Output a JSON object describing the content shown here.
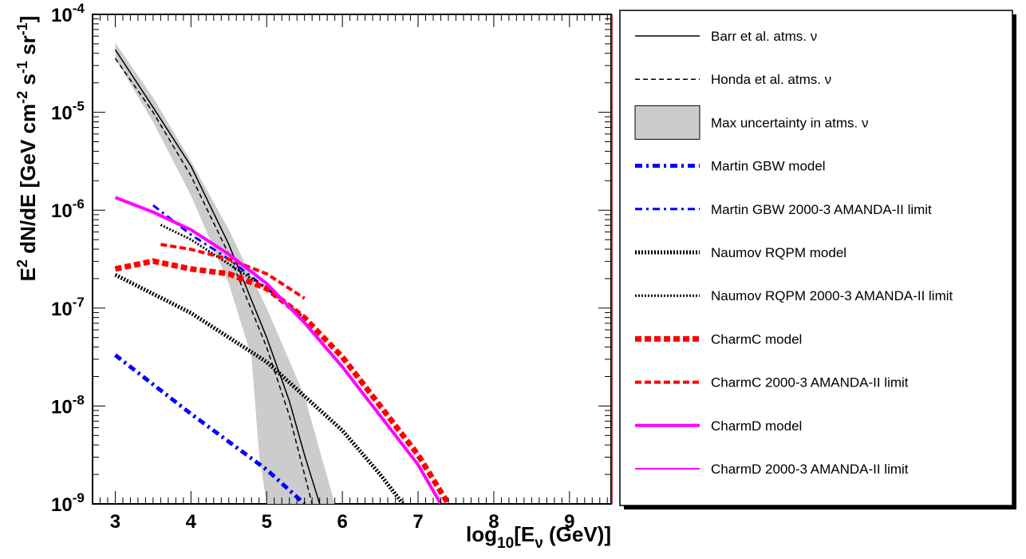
{
  "chart_data": {
    "type": "line",
    "title": "",
    "xlabel": {
      "pre": "log",
      "sub1": "10",
      "mid": "[E",
      "sub2": "ν",
      "post": " (GeV)]"
    },
    "ylabel": "E^2 dN/dE [GeV cm^-2 s^-1 sr^-1]",
    "xlim": [
      2.7,
      9.55
    ],
    "ylim_log10": [
      -9,
      -4
    ],
    "y_scale": "log",
    "x_ticks": [
      3,
      4,
      5,
      6,
      7,
      8,
      9
    ],
    "y_ticks": [
      -9,
      -8,
      -7,
      -6,
      -5,
      -4
    ],
    "y_tick_base": "10",
    "legend_position": "right",
    "uncertainty_band": {
      "name": "Max uncertainty in atms. ν",
      "color": "#cccccc",
      "upper": [
        [
          3.0,
          -4.29
        ],
        [
          3.5,
          -4.85
        ],
        [
          4.0,
          -5.5
        ],
        [
          4.5,
          -6.2
        ],
        [
          5.0,
          -7.0
        ],
        [
          5.5,
          -7.9
        ],
        [
          5.9,
          -9.0
        ]
      ],
      "lower": [
        [
          3.0,
          -4.45
        ],
        [
          3.5,
          -5.1
        ],
        [
          4.0,
          -5.85
        ],
        [
          4.5,
          -6.75
        ],
        [
          4.8,
          -7.5
        ],
        [
          4.9,
          -8.5
        ],
        [
          5.0,
          -9.0
        ]
      ]
    },
    "series": [
      {
        "name": "Barr et al. atms.  ν",
        "color": "#000000",
        "width": 1.5,
        "dash": "",
        "points": [
          [
            3.0,
            -4.36
          ],
          [
            3.5,
            -4.95
          ],
          [
            4.0,
            -5.55
          ],
          [
            4.5,
            -6.35
          ],
          [
            5.0,
            -7.3
          ],
          [
            5.3,
            -7.95
          ],
          [
            5.5,
            -8.5
          ],
          [
            5.7,
            -9.0
          ]
        ]
      },
      {
        "name": "Honda et al. atms.  ν",
        "color": "#000000",
        "width": 1.5,
        "dash": "6,4",
        "points": [
          [
            3.0,
            -4.45
          ],
          [
            3.5,
            -5.0
          ],
          [
            4.0,
            -5.65
          ],
          [
            4.5,
            -6.45
          ],
          [
            5.0,
            -7.4
          ],
          [
            5.3,
            -8.1
          ],
          [
            5.45,
            -8.55
          ],
          [
            5.6,
            -9.0
          ]
        ]
      },
      {
        "name": "Martin GBW model",
        "color": "#0000ff",
        "width": 5,
        "dash": "9,5,3,5",
        "points": [
          [
            3.0,
            -7.48
          ],
          [
            4.0,
            -8.08
          ],
          [
            5.0,
            -8.65
          ],
          [
            5.5,
            -9.0
          ]
        ]
      },
      {
        "name": "Martin GBW 2000-3 AMANDA-II limit",
        "color": "#0000ff",
        "width": 3,
        "dash": "9,5,3,5",
        "points": [
          [
            3.5,
            -5.95
          ],
          [
            4.0,
            -6.25
          ],
          [
            4.5,
            -6.5
          ],
          [
            5.0,
            -6.8
          ],
          [
            5.5,
            -7.1
          ]
        ]
      },
      {
        "name": "Naumov RQPM model",
        "color": "#000000",
        "width": 5,
        "dash": "2,2",
        "points": [
          [
            3.0,
            -6.66
          ],
          [
            4.0,
            -7.05
          ],
          [
            5.0,
            -7.55
          ],
          [
            6.0,
            -8.25
          ],
          [
            6.5,
            -8.7
          ],
          [
            6.8,
            -9.0
          ]
        ]
      },
      {
        "name": "Naumov RQPM 2000-3 AMANDA-II limit",
        "color": "#000000",
        "width": 3,
        "dash": "2,2",
        "points": [
          [
            3.6,
            -6.15
          ],
          [
            4.0,
            -6.3
          ],
          [
            4.5,
            -6.55
          ],
          [
            5.0,
            -6.8
          ],
          [
            5.5,
            -7.1
          ]
        ]
      },
      {
        "name": "CharmC model",
        "color": "#ff0000",
        "width": 7,
        "dash": "8,4",
        "points": [
          [
            3.0,
            -6.6
          ],
          [
            3.5,
            -6.52
          ],
          [
            4.0,
            -6.6
          ],
          [
            4.5,
            -6.65
          ],
          [
            5.0,
            -6.8
          ],
          [
            5.5,
            -7.1
          ],
          [
            6.0,
            -7.5
          ],
          [
            6.5,
            -8.0
          ],
          [
            7.0,
            -8.5
          ],
          [
            7.4,
            -9.0
          ]
        ]
      },
      {
        "name": "CharmC 2000-3 AMANDA-II limit",
        "color": "#ff0000",
        "width": 4,
        "dash": "8,4",
        "points": [
          [
            3.6,
            -6.35
          ],
          [
            4.0,
            -6.4
          ],
          [
            4.5,
            -6.5
          ],
          [
            5.0,
            -6.65
          ],
          [
            5.5,
            -6.9
          ]
        ]
      },
      {
        "name": "CharmD model",
        "color": "#ff00ff",
        "width": 4,
        "dash": "",
        "points": [
          [
            3.0,
            -5.87
          ],
          [
            3.5,
            -6.02
          ],
          [
            4.0,
            -6.2
          ],
          [
            4.5,
            -6.45
          ],
          [
            5.0,
            -6.75
          ],
          [
            5.5,
            -7.15
          ],
          [
            6.0,
            -7.6
          ],
          [
            6.5,
            -8.1
          ],
          [
            7.0,
            -8.6
          ],
          [
            7.3,
            -9.0
          ]
        ]
      },
      {
        "name": "CharmD 2000-3 AMANDA-II limit",
        "color": "#ff00ff",
        "width": 2,
        "dash": "",
        "points": []
      }
    ]
  }
}
